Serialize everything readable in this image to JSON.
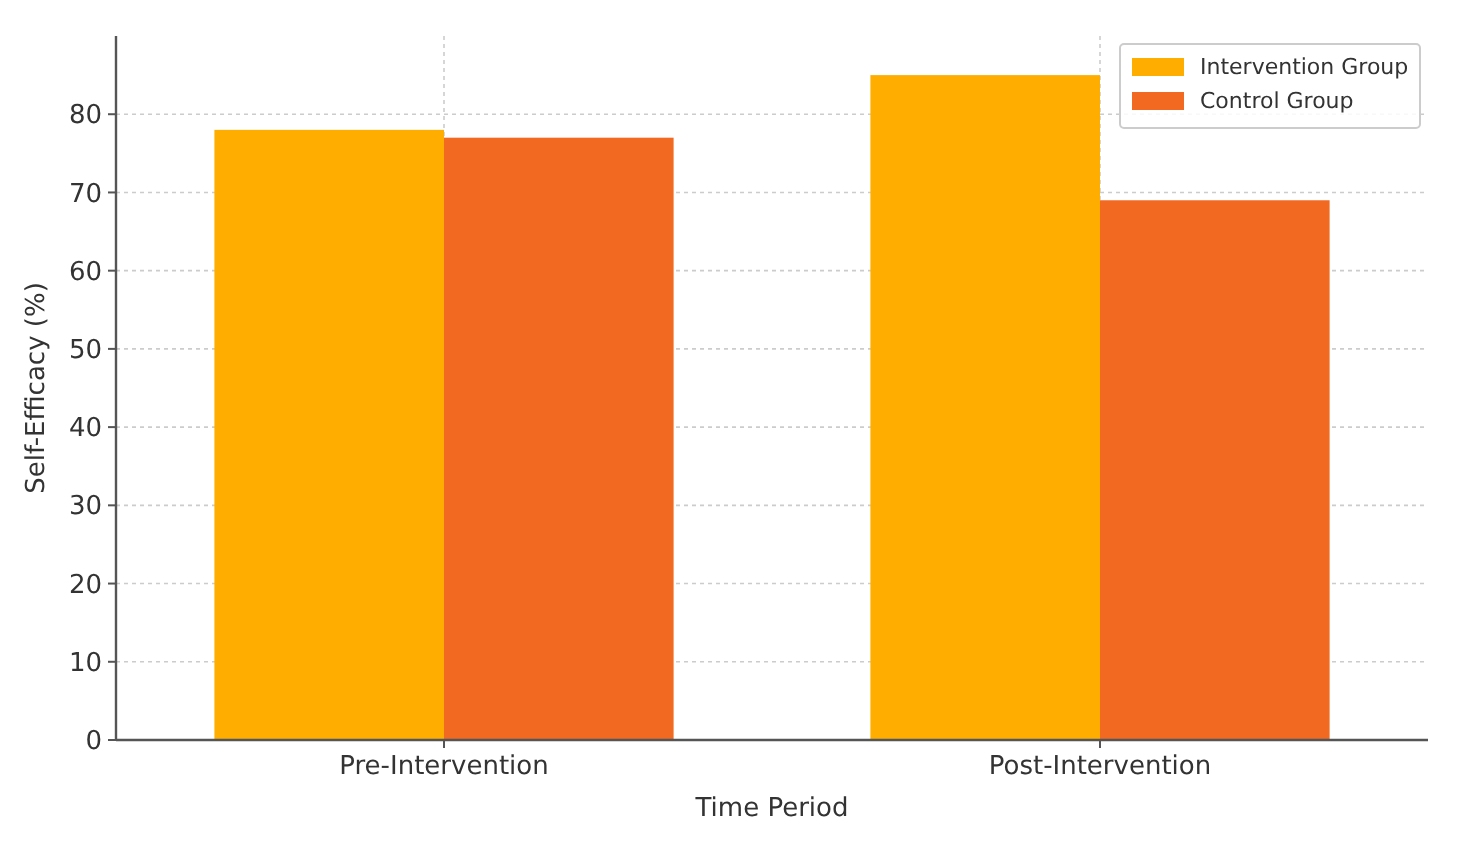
{
  "chart_data": {
    "type": "bar",
    "xlabel": "Time Period",
    "ylabel": "Self-Efficacy (%)",
    "categories": [
      "Pre-Intervention",
      "Post-Intervention"
    ],
    "series": [
      {
        "name": "Intervention Group",
        "color": "#ffae00",
        "values": [
          78,
          85
        ]
      },
      {
        "name": "Control Group",
        "color": "#f26922",
        "values": [
          77,
          69
        ]
      }
    ],
    "ylim": [
      0,
      90
    ],
    "yticks": [
      0,
      10,
      20,
      30,
      40,
      50,
      60,
      70,
      80
    ],
    "grid": true,
    "legend": "top right"
  }
}
